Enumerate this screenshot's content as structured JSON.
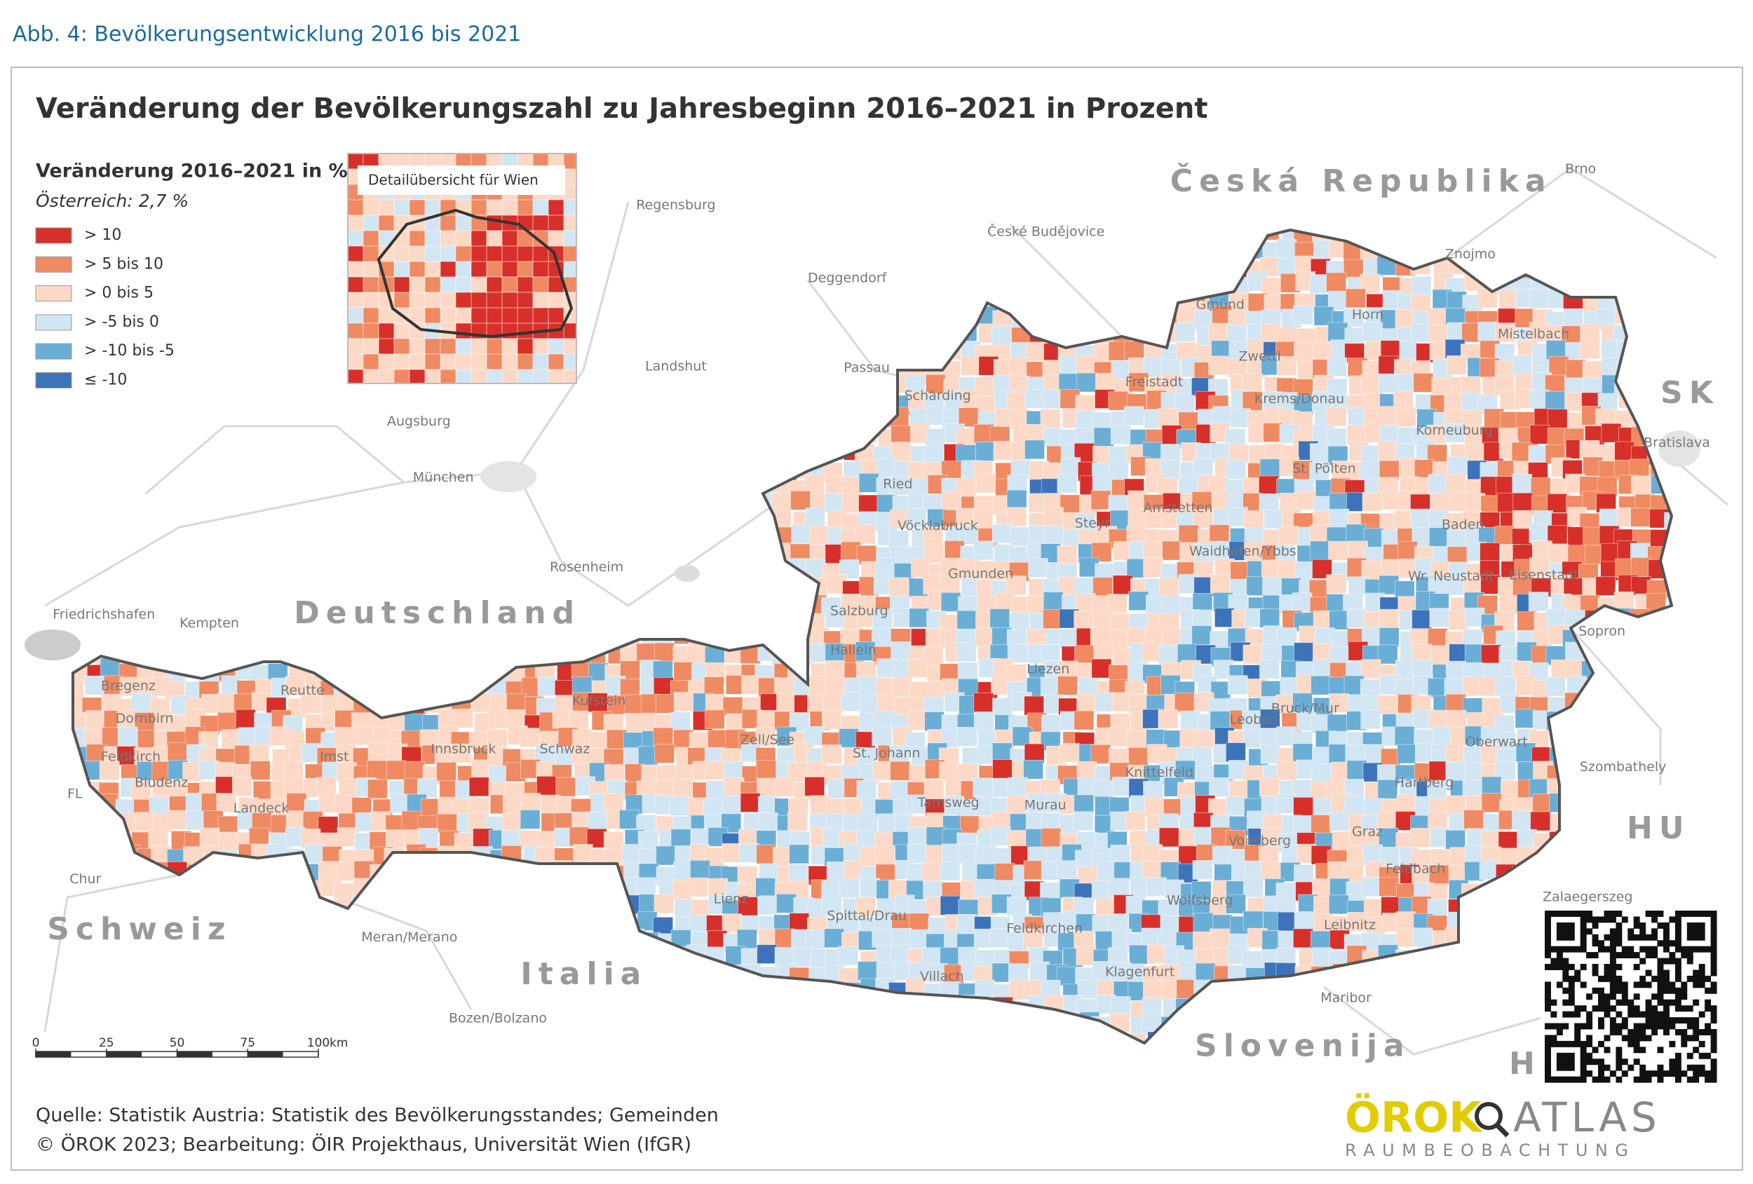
{
  "figure_caption": "Abb. 4: Bevölkerungsentwicklung 2016 bis 2021",
  "title": "Veränderung der Bevölkerungszahl zu Jahresbeginn 2016–2021 in Prozent",
  "legend": {
    "title": "Veränderung 2016–2021 in %",
    "subtitle": "Österreich: 2,7 %",
    "classes": [
      {
        "label": "> 10",
        "color": "#d7302a"
      },
      {
        "label": "> 5  bis  10",
        "color": "#ef8a62"
      },
      {
        "label": "> 0  bis  5",
        "color": "#fbd9c6"
      },
      {
        "label": "> -5  bis  0",
        "color": "#d2e5f2"
      },
      {
        "label": "> -10  bis  -5",
        "color": "#6aaed6"
      },
      {
        "label": "≤ -10",
        "color": "#3d73bb"
      }
    ]
  },
  "inset": {
    "title": "Detailübersicht für Wien"
  },
  "countries": [
    "Česká Republika",
    "Deutschland",
    "Schweiz",
    "Italia",
    "Slovenija",
    "SK",
    "HU",
    "HR"
  ],
  "places": [
    "Regensburg",
    "Deggendorf",
    "Landshut",
    "Passau",
    "Augsburg",
    "München",
    "Rosenheim",
    "Kempten",
    "Friedrichshafen",
    "Chur",
    "Meran/Merano",
    "Bozen/Bolzano",
    "České Budějovice",
    "Brno",
    "Znojmo",
    "Bratislava",
    "Szombathely",
    "Zalaegerszeg",
    "Maribor",
    "Gmünd",
    "Horn",
    "Zwettl",
    "Mistelbach",
    "Freistadt",
    "Krems/Donau",
    "Schärding",
    "Korneuburg",
    "Ried",
    "St. Pölten",
    "Amstetten",
    "Vöcklabruck",
    "Steyr",
    "Baden",
    "Waidhofen/Ybbs",
    "Gmunden",
    "Wr. Neustadt",
    "Eisenstadt",
    "Salzburg",
    "Hallein",
    "Sopron",
    "Liezen",
    "Bregenz",
    "Kufstein",
    "Reutte",
    "Dornbirn",
    "Bruck/Mur",
    "Leoben",
    "Zell/See",
    "Innsbruck",
    "Schwaz",
    "Imst",
    "Feldkirch",
    "St. Johann",
    "Oberwart",
    "Bludenz",
    "Hartberg",
    "Knittelfeld",
    "Tamsweg",
    "Landeck",
    "Murau",
    "Graz",
    "Voitsberg",
    "Feldbach",
    "Lienz",
    "Wolfsberg",
    "Spittal/Drau",
    "Leibnitz",
    "Feldkirchen",
    "Villach",
    "Klagenfurt",
    "FL"
  ],
  "scale_bar": {
    "ticks": [
      0,
      25,
      50,
      75,
      100
    ],
    "unit": "km"
  },
  "source": [
    "Quelle: Statistik Austria: Statistik des Bevölkerungsstandes; Gemeinden",
    "© ÖROK 2023; Bearbeitung: ÖIR Projekthaus, Universität Wien (IfGR)"
  ],
  "logo": {
    "name": "ÖROK",
    "atlas": "ATLAS",
    "tagline": "RAUMBEOBACHTUNG"
  }
}
